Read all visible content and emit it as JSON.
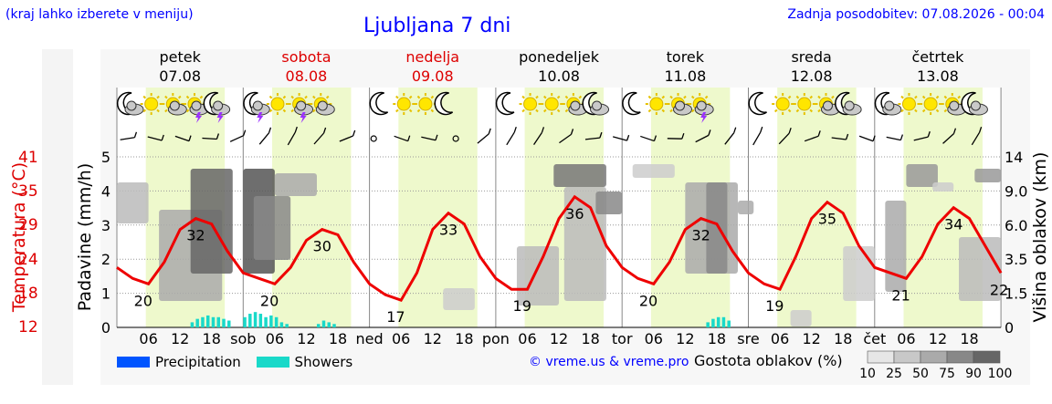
{
  "header": {
    "hint": "(kraj lahko izberete v meniju)",
    "title": "Ljubljana 7 dni",
    "updated": "Zadnja posodobitev: 07.08.2026 - 00:04"
  },
  "days": [
    {
      "name": "petek",
      "date": "07.08",
      "color": "#000000"
    },
    {
      "name": "sobota",
      "date": "08.08",
      "color": "#dd0000"
    },
    {
      "name": "nedelja",
      "date": "09.08",
      "color": "#dd0000"
    },
    {
      "name": "ponedeljek",
      "date": "10.08",
      "color": "#000000"
    },
    {
      "name": "torek",
      "date": "11.08",
      "color": "#000000"
    },
    {
      "name": "sreda",
      "date": "12.08",
      "color": "#000000"
    },
    {
      "name": "četrtek",
      "date": "13.08",
      "color": "#000000"
    }
  ],
  "day_short": [
    "sob",
    "ned",
    "pon",
    "tor",
    "sre",
    "čet"
  ],
  "hour_ticks": [
    "06",
    "12",
    "18"
  ],
  "icons": [
    [
      "moon-cloud",
      "sun",
      "sun-cloud",
      "sun-storm",
      "moon-storm"
    ],
    [
      "moon-storm",
      "sun",
      "sun-storm",
      "sun-cloud"
    ],
    [
      "moon",
      "sun",
      "sun",
      "moon"
    ],
    [
      "moon",
      "sun",
      "sun",
      "sun-cloud",
      "moon-cloud"
    ],
    [
      "moon",
      "sun",
      "sun-cloud",
      "sun-storm"
    ],
    [
      "moon",
      "sun",
      "sun",
      "sun-cloud",
      "moon-cloud"
    ],
    [
      "moon-cloud",
      "sun",
      "sun",
      "sun-cloud",
      "moon-cloud"
    ]
  ],
  "axes": {
    "temp_label": "Temperatura (°C)",
    "precip_label": "Padavine (mm/h)",
    "cloud_label": "Višina oblakov (km)",
    "temp_ticks": [
      "41",
      "35",
      "29",
      "24",
      "18",
      "12"
    ],
    "precip_ticks": [
      "0",
      "1",
      "2",
      "3",
      "4",
      "5"
    ],
    "cloud_ticks": [
      "0",
      "1.5",
      "3.5",
      "6.0",
      "9.0",
      "14"
    ]
  },
  "legend": {
    "precip_label": "Precipitation",
    "precip_color": "#0055ff",
    "showers_label": "Showers",
    "showers_color": "#19d9c9",
    "credit": "© vreme.us & vreme.pro",
    "cloud_title": "Gostota oblakov (%)",
    "cloud_levels": [
      "10",
      "25",
      "50",
      "75",
      "90",
      "100"
    ]
  },
  "chart_data": {
    "type": "line",
    "title": "Ljubljana 7 dni",
    "xlabel": "",
    "ylabel": "Temperatura (°C)",
    "ylim": [
      12,
      44
    ],
    "temp_color": "#ee0000",
    "temperature_extremes": [
      {
        "day": "07.08",
        "label": "20",
        "kind": "min"
      },
      {
        "day": "07.08",
        "label": "32",
        "kind": "max"
      },
      {
        "day": "08.08",
        "label": "20",
        "kind": "min"
      },
      {
        "day": "08.08",
        "label": "30",
        "kind": "max"
      },
      {
        "day": "09.08",
        "label": "17",
        "kind": "min"
      },
      {
        "day": "09.08",
        "label": "33",
        "kind": "max"
      },
      {
        "day": "10.08",
        "label": "19",
        "kind": "min"
      },
      {
        "day": "10.08",
        "label": "36",
        "kind": "max"
      },
      {
        "day": "11.08",
        "label": "20",
        "kind": "min"
      },
      {
        "day": "11.08",
        "label": "32",
        "kind": "max"
      },
      {
        "day": "12.08",
        "label": "19",
        "kind": "min"
      },
      {
        "day": "12.08",
        "label": "35",
        "kind": "max"
      },
      {
        "day": "13.08",
        "label": "21",
        "kind": "min"
      },
      {
        "day": "13.08",
        "label": "34",
        "kind": "max"
      },
      {
        "day": "14.08",
        "label": "22",
        "kind": "min"
      }
    ],
    "temperature_hourly": {
      "hours": [
        0,
        3,
        6,
        9,
        12,
        15,
        18,
        21,
        24,
        27,
        30,
        33,
        36,
        39,
        42,
        45,
        48,
        51,
        54,
        57,
        60,
        63,
        66,
        69,
        72,
        75,
        78,
        81,
        84,
        87,
        90,
        93,
        96,
        99,
        102,
        105,
        108,
        111,
        114,
        117,
        120,
        123,
        126,
        129,
        132,
        135,
        138,
        141,
        144,
        147,
        150,
        153,
        156,
        159,
        162,
        165,
        168
      ],
      "values": [
        23,
        21,
        20,
        24,
        30,
        32,
        31,
        26,
        22,
        21,
        20,
        23,
        28,
        30,
        29,
        24,
        20,
        18,
        17,
        22,
        30,
        33,
        31,
        25,
        21,
        19,
        19,
        25,
        32,
        36,
        34,
        27,
        23,
        21,
        20,
        24,
        30,
        32,
        31,
        26,
        22,
        20,
        19,
        25,
        32,
        35,
        33,
        27,
        23,
        22,
        21,
        25,
        31,
        34,
        32,
        27,
        22
      ]
    },
    "showers_mm_h": [
      {
        "day": "07.08",
        "hours": [
          14,
          15,
          16,
          17,
          18,
          19,
          20,
          21
        ],
        "values": [
          0.15,
          0.25,
          0.3,
          0.35,
          0.3,
          0.3,
          0.25,
          0.2
        ]
      },
      {
        "day": "08.08",
        "hours": [
          0,
          1,
          2,
          3,
          4,
          5,
          6,
          7,
          8
        ],
        "values": [
          0.3,
          0.4,
          0.45,
          0.4,
          0.3,
          0.35,
          0.3,
          0.15,
          0.1
        ]
      },
      {
        "day": "08.08",
        "hours": [
          14,
          15,
          16,
          17
        ],
        "values": [
          0.1,
          0.2,
          0.15,
          0.1
        ]
      },
      {
        "day": "11.08",
        "hours": [
          16,
          17,
          18,
          19,
          20
        ],
        "values": [
          0.15,
          0.25,
          0.3,
          0.3,
          0.2
        ]
      }
    ]
  }
}
